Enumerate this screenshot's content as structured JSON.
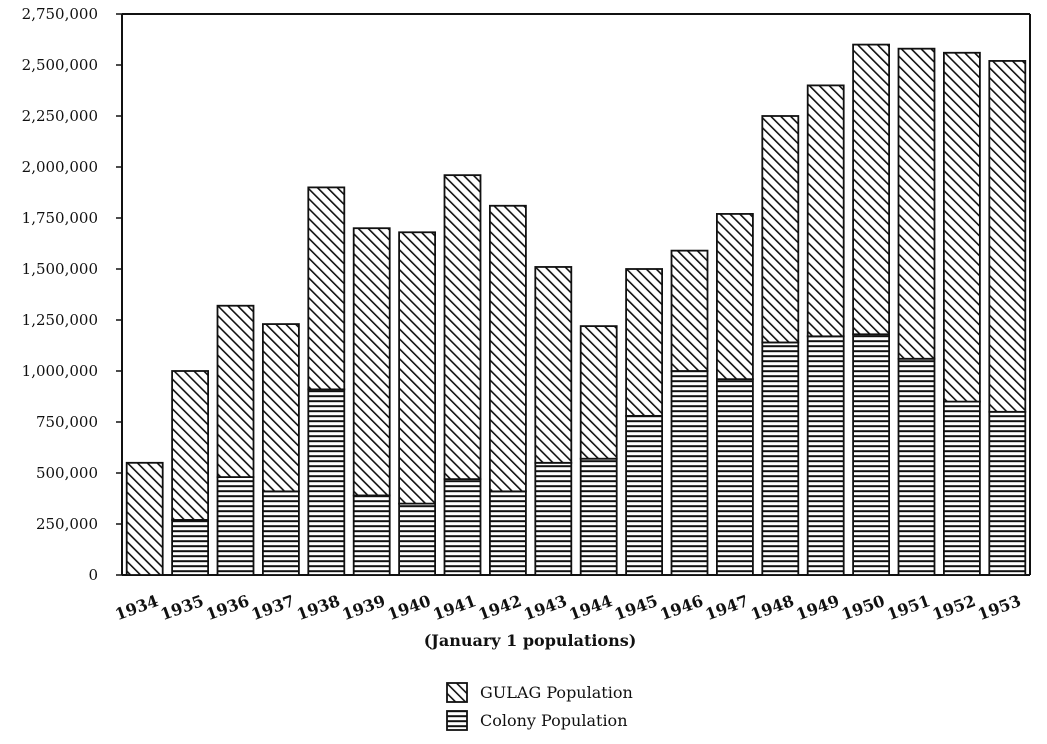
{
  "chart_data": {
    "type": "bar",
    "stacked": true,
    "categories": [
      "1934",
      "1935",
      "1936",
      "1937",
      "1938",
      "1939",
      "1940",
      "1941",
      "1942",
      "1943",
      "1944",
      "1945",
      "1946",
      "1947",
      "1948",
      "1949",
      "1950",
      "1951",
      "1952",
      "1953"
    ],
    "series": [
      {
        "name": "Colony Population",
        "pattern": "horizontal-lines",
        "values": [
          0,
          270000,
          480000,
          410000,
          910000,
          390000,
          350000,
          470000,
          410000,
          550000,
          570000,
          780000,
          1000000,
          960000,
          1140000,
          1170000,
          1180000,
          1060000,
          850000,
          800000
        ]
      },
      {
        "name": "GULAG Population",
        "pattern": "diagonal-lines",
        "values": [
          550000,
          730000,
          840000,
          820000,
          990000,
          1310000,
          1330000,
          1490000,
          1400000,
          960000,
          650000,
          720000,
          590000,
          810000,
          1110000,
          1230000,
          1420000,
          1520000,
          1710000,
          1720000
        ]
      }
    ],
    "xlabel": "(January 1 populations)",
    "ylabel": "",
    "ylim": [
      0,
      2750000
    ],
    "yticks": [
      "0",
      "250,000",
      "500,000",
      "750,000",
      "1,000,000",
      "1,250,000",
      "1,500,000",
      "1,750,000",
      "2,000,000",
      "2,250,000",
      "2,500,000",
      "2,750,000"
    ],
    "ytick_values": [
      0,
      250000,
      500000,
      750000,
      1000000,
      1250000,
      1500000,
      1750000,
      2000000,
      2250000,
      2500000,
      2750000
    ],
    "grid": false,
    "legend_position": "bottom-center",
    "colors": {
      "ink": "#111111",
      "background": "#ffffff"
    }
  }
}
